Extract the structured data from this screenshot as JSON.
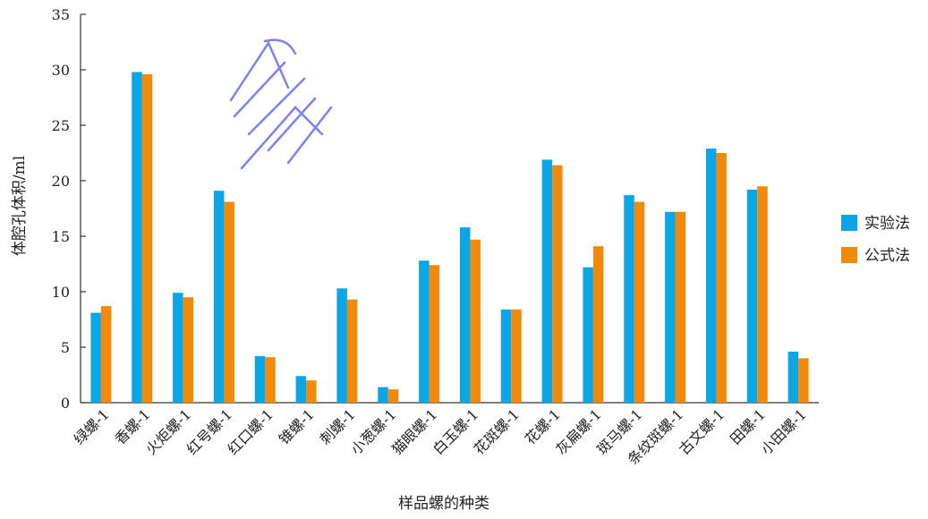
{
  "chart_data": {
    "type": "bar",
    "title": "",
    "xlabel": "样品螺的种类",
    "ylabel": "体腔孔体积/ml",
    "ylim": [
      0,
      35
    ],
    "yticks": [
      0,
      5,
      10,
      15,
      20,
      25,
      30,
      35
    ],
    "grid": false,
    "legend_position": "right",
    "categories": [
      "绿螺-1",
      "香螺-1",
      "火炬螺-1",
      "红号螺-1",
      "红口螺-1",
      "锥螺-1",
      "刺螺-1",
      "小葱螺-1",
      "猫眼螺-1",
      "白玉螺-1",
      "花斑螺-1",
      "花螺-1",
      "灰扁螺-1",
      "斑马螺-1",
      "条纹斑螺-1",
      "古文螺-1",
      "田螺-1",
      "小田螺-1"
    ],
    "series": [
      {
        "name": "实验法",
        "color": "#0aa6e6",
        "values": [
          8.1,
          29.8,
          9.9,
          19.1,
          4.2,
          2.4,
          10.3,
          1.4,
          12.8,
          15.8,
          8.4,
          21.9,
          12.2,
          18.7,
          17.2,
          22.9,
          19.2,
          4.6
        ]
      },
      {
        "name": "公式法",
        "color": "#f0890c",
        "values": [
          8.7,
          29.6,
          9.5,
          18.1,
          4.1,
          2.0,
          9.3,
          1.2,
          12.4,
          14.7,
          8.4,
          21.4,
          14.1,
          18.1,
          17.2,
          22.5,
          19.5,
          4.0
        ]
      }
    ]
  }
}
